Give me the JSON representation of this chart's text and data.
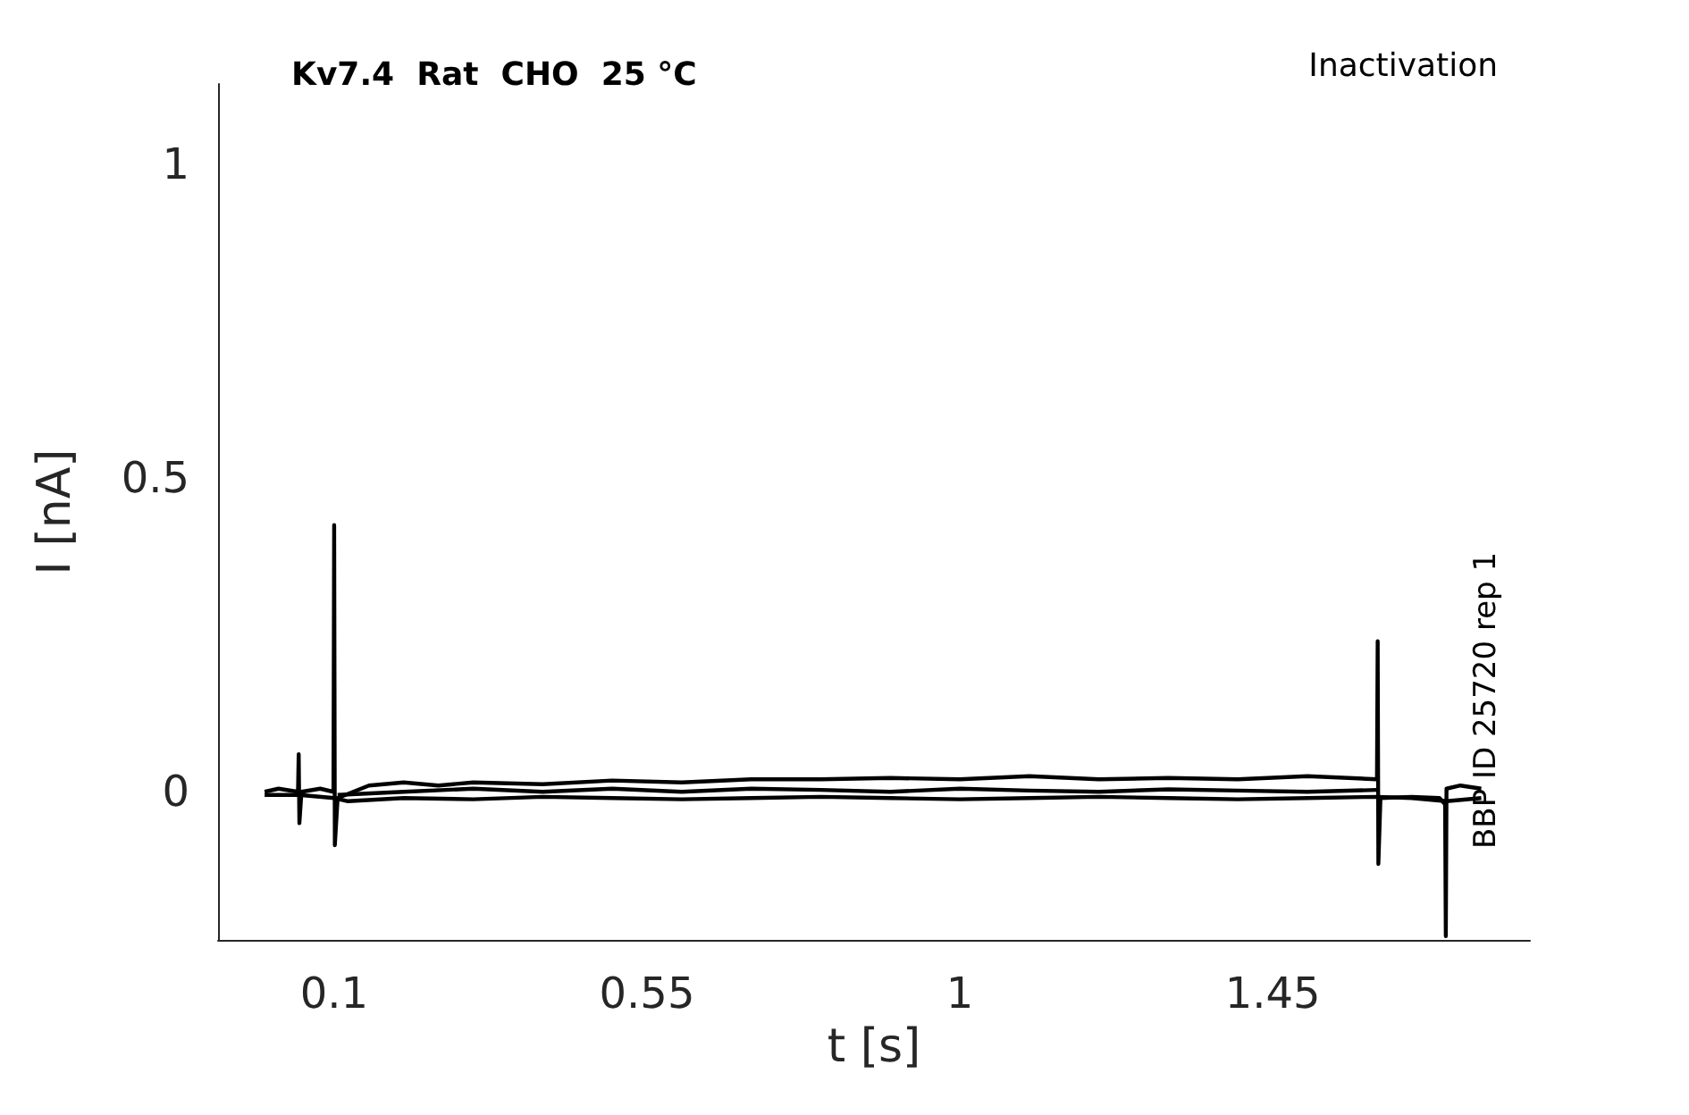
{
  "chart_data": {
    "type": "line",
    "title": "Kv7.4  Rat  CHO  25 °C",
    "xlabel": "t [s]",
    "ylabel": "I [nA]",
    "annotations": [
      "Inactivation",
      "BBP ID 25720 rep 1"
    ],
    "xlim": [
      -0.067,
      1.82
    ],
    "ylim": [
      -0.236,
      1.128
    ],
    "xticks": [
      0.1,
      0.55,
      1,
      1.45
    ],
    "yticks": [
      0,
      0.5,
      1
    ],
    "grid": false,
    "marker": "none",
    "line_style": "solid",
    "series": [
      {
        "color": "#000000",
        "x": [
          0,
          0.02,
          0.048,
          0.049,
          0.05,
          0.053,
          0.08,
          0.099,
          0.1,
          0.101,
          0.105,
          0.15,
          0.2,
          0.25,
          0.3,
          0.4,
          0.5,
          0.6,
          0.7,
          0.8,
          0.9,
          1.0,
          1.1,
          1.2,
          1.3,
          1.4,
          1.5,
          1.6,
          1.601,
          1.602,
          1.605,
          1.65,
          1.69,
          1.698,
          1.699,
          1.7,
          1.72,
          1.75
        ],
        "values": [
          0,
          0.005,
          0,
          0.06,
          -0.05,
          0,
          0.005,
          0,
          0.425,
          -0.085,
          -0.01,
          0.01,
          0.015,
          0.01,
          0.015,
          0.012,
          0.018,
          0.015,
          0.02,
          0.02,
          0.022,
          0.02,
          0.025,
          0.02,
          0.022,
          0.02,
          0.025,
          0.02,
          0.24,
          -0.115,
          -0.01,
          -0.008,
          -0.01,
          -0.02,
          -0.23,
          0.005,
          0.01,
          0.005
        ]
      },
      {
        "color": "#000000",
        "x": [
          0,
          0.05,
          0.1,
          0.12,
          0.2,
          0.3,
          0.4,
          0.5,
          0.6,
          0.7,
          0.8,
          0.9,
          1.0,
          1.1,
          1.2,
          1.3,
          1.4,
          1.5,
          1.6,
          1.65,
          1.7,
          1.75
        ],
        "values": [
          -0.005,
          -0.005,
          -0.01,
          -0.015,
          -0.01,
          -0.012,
          -0.008,
          -0.01,
          -0.012,
          -0.01,
          -0.008,
          -0.01,
          -0.012,
          -0.01,
          -0.008,
          -0.01,
          -0.012,
          -0.01,
          -0.008,
          -0.01,
          -0.015,
          -0.01
        ]
      },
      {
        "color": "#000000",
        "x": [
          0.105,
          0.2,
          0.3,
          0.4,
          0.5,
          0.6,
          0.7,
          0.8,
          0.9,
          1.0,
          1.1,
          1.2,
          1.3,
          1.4,
          1.5,
          1.6
        ],
        "values": [
          -0.005,
          0,
          0.005,
          0,
          0.005,
          0,
          0.005,
          0.003,
          0,
          0.005,
          0.002,
          0,
          0.004,
          0.002,
          0,
          0.003
        ]
      }
    ]
  }
}
